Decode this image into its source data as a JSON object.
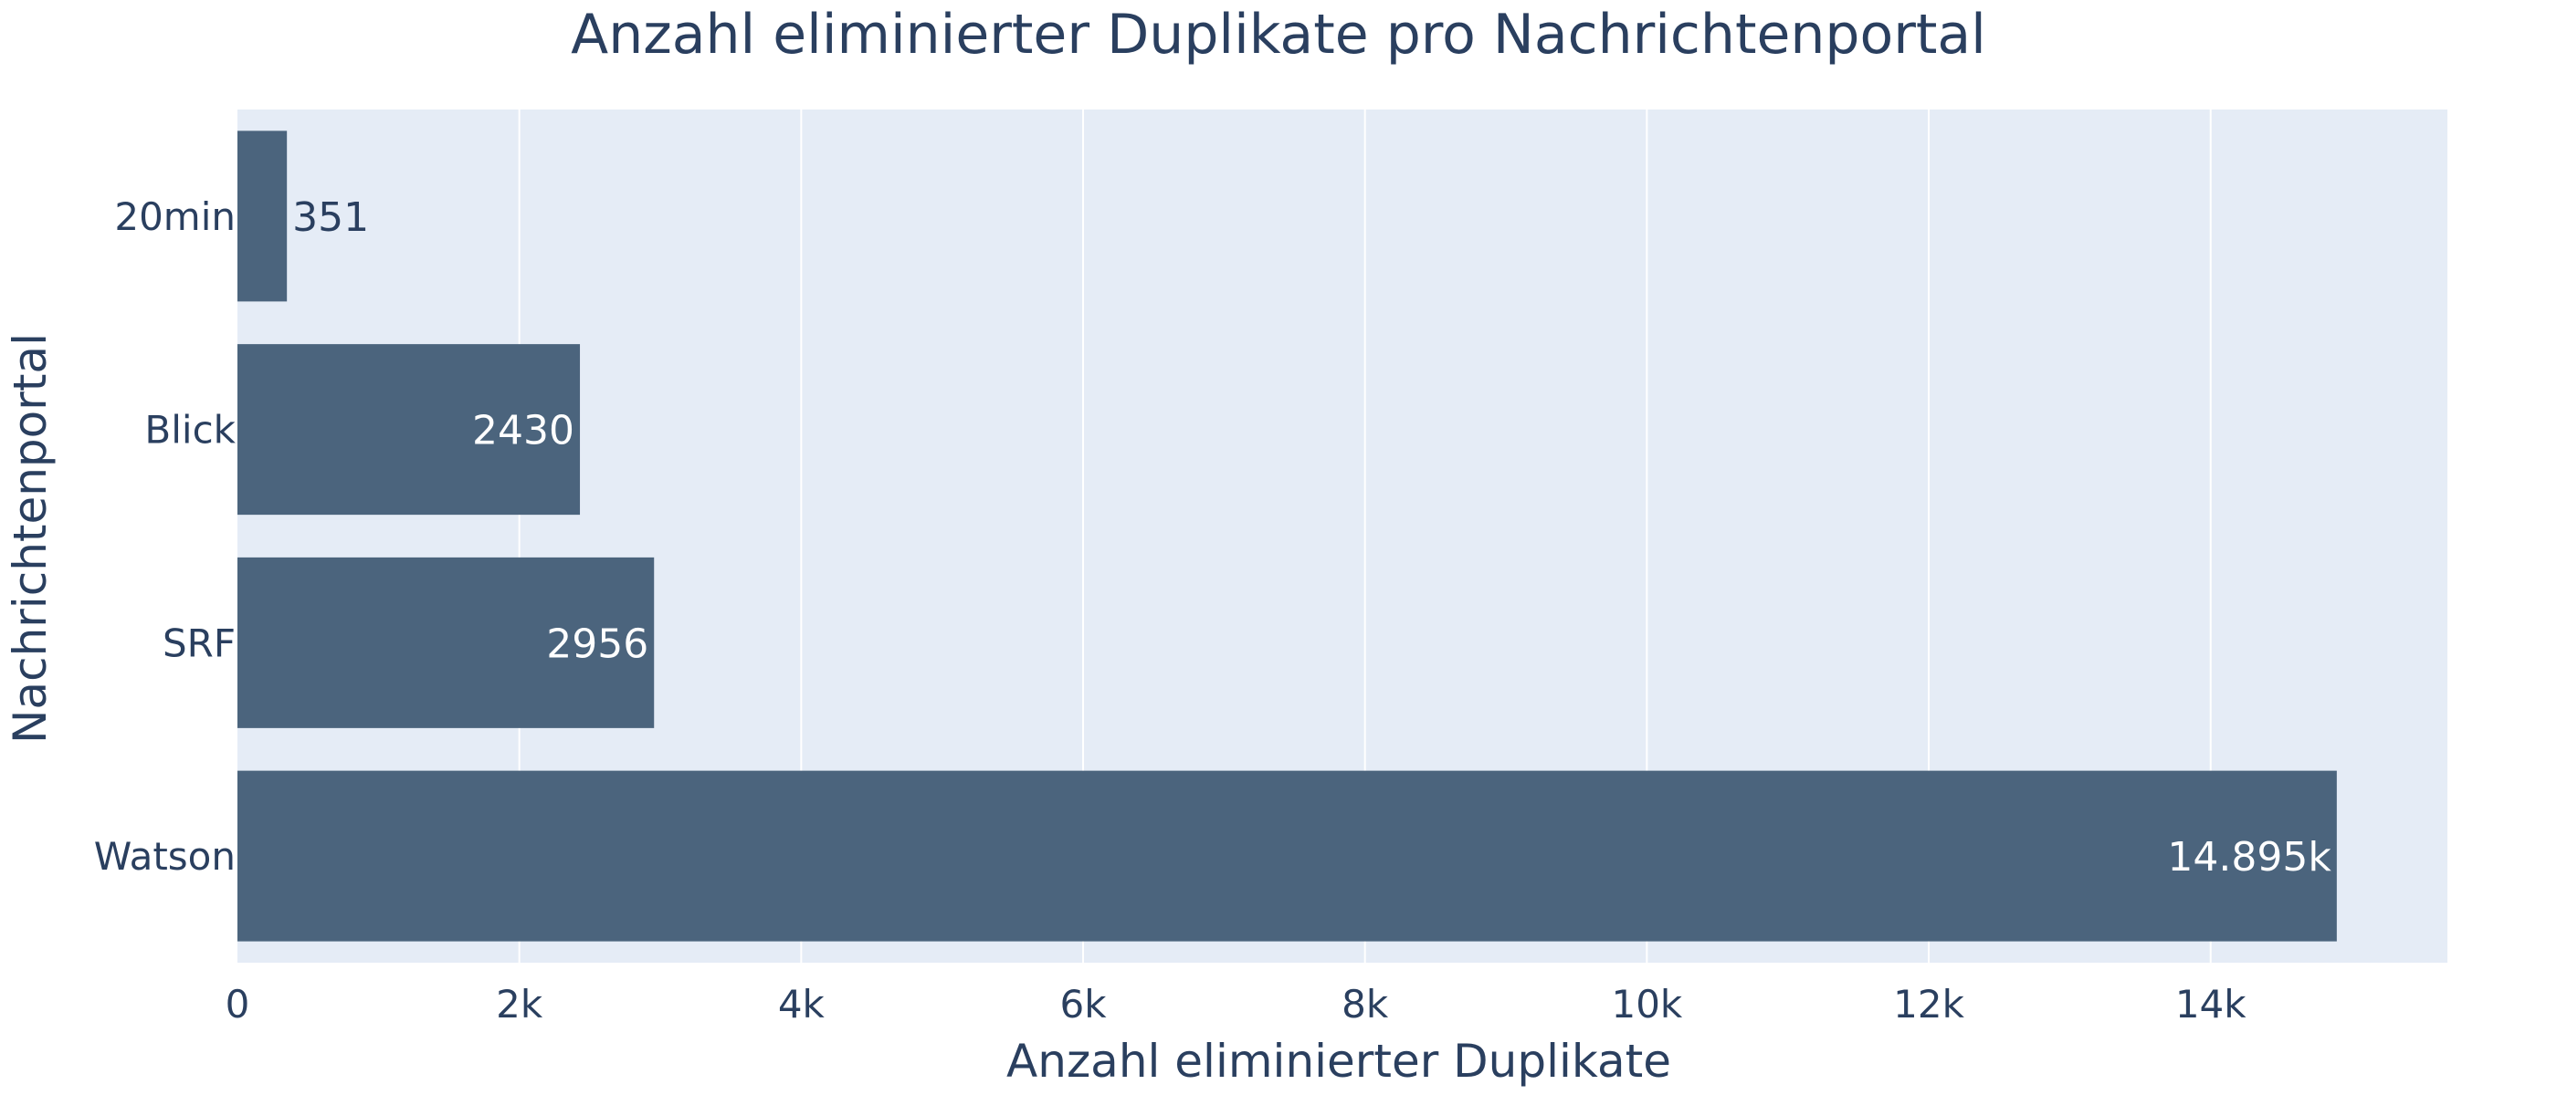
{
  "colors": {
    "plot_background": "#E5ECF6",
    "gridline": "#FFFFFF",
    "bar": "#4B647D",
    "text": "#2A3F5F",
    "bar_label_inside": "#FFFFFF",
    "bar_label_outside": "#2A3F5F"
  },
  "chart_data": {
    "type": "bar",
    "orientation": "horizontal",
    "title": "Anzahl eliminierter Duplikate pro Nachrichtenportal",
    "xlabel": "Anzahl eliminierter Duplikate",
    "ylabel": "Nachrichtenportal",
    "categories": [
      "20min",
      "Blick",
      "SRF",
      "Watson"
    ],
    "values": [
      351,
      2430,
      2956,
      14895
    ],
    "data_labels": [
      "351",
      "2430",
      "2956",
      "14.895k"
    ],
    "xlim": [
      0,
      15680
    ],
    "x_ticks": [
      0,
      2000,
      4000,
      6000,
      8000,
      10000,
      12000,
      14000
    ],
    "x_tick_labels": [
      "0",
      "2k",
      "4k",
      "6k",
      "8k",
      "10k",
      "12k",
      "14k"
    ],
    "grid": true,
    "legend": "none"
  }
}
